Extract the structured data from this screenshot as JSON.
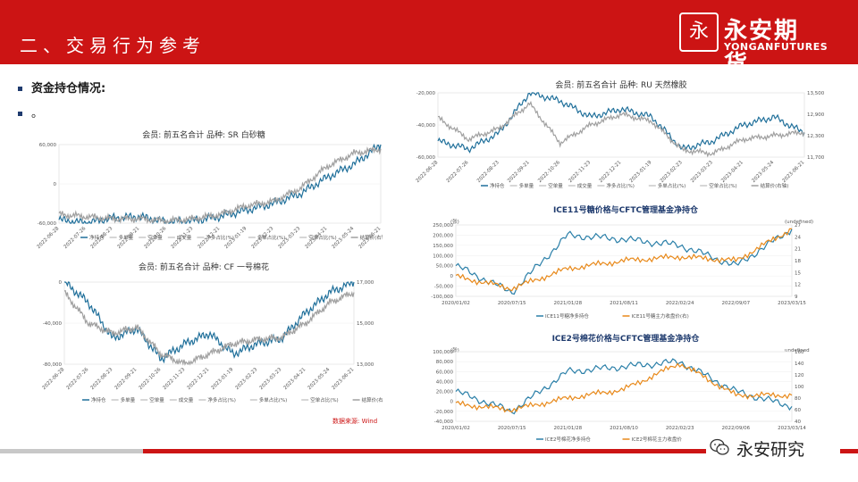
{
  "header": {
    "title": "二、交易行为参考"
  },
  "logo": {
    "mark": "永",
    "cn": "永安期货",
    "en": "YONGANFUTURES"
  },
  "bullets": [
    {
      "text": "资金持仓情况:"
    },
    {
      "text": "。"
    }
  ],
  "source_note": "数据来源: Wind",
  "watermark": {
    "text": "永安研究"
  },
  "colors": {
    "brand_red": "#cc1414",
    "net_position": "#1f6f9a",
    "price_grey": "#a0a0a0",
    "ice_teal": "#2a7fa8",
    "ice_orange": "#e8891a"
  },
  "chart_data": [
    {
      "type": "line",
      "title": "会员: 前五名合计 品种: SR 白砂糖",
      "x": [
        "2022-06-28",
        "2022-07-26",
        "2022-08-23",
        "2022-09-21",
        "2022-10-26",
        "2022-11-23",
        "2022-12-21",
        "2023-01-19",
        "2023-02-23",
        "2023-03-23",
        "2023-04-21",
        "2023-05-24",
        "2023-06-21"
      ],
      "y_left_ticks": [
        "60,000",
        "0",
        "-60,000"
      ],
      "y_right_ticks": [
        "7,200",
        "6,800",
        "6,400",
        "6,000",
        "5,600",
        "5,400"
      ],
      "legend": [
        "净持仓",
        "多单量",
        "空单量",
        "成交量",
        "净多占比(%)",
        "多单占比(%)",
        "空单占比(%)",
        "结算价(右轴)"
      ],
      "series": [
        {
          "name": "净持仓",
          "values": [
            -55000,
            -60000,
            -52000,
            -50000,
            -58000,
            -56000,
            -50000,
            -40000,
            -30000,
            -15000,
            10000,
            30000,
            60000
          ]
        },
        {
          "name": "结算价(右轴)",
          "values": [
            5600,
            5550,
            5500,
            5500,
            5450,
            5500,
            5600,
            5800,
            5900,
            6200,
            6700,
            7000,
            7100
          ]
        }
      ]
    },
    {
      "type": "line",
      "title": "会员: 前五名合计 品种: CF 一号棉花",
      "x": [
        "2022-06-28",
        "2022-07-26",
        "2022-08-23",
        "2022-09-21",
        "2022-10-26",
        "2022-11-23",
        "2022-12-21",
        "2023-01-19",
        "2023-02-23",
        "2023-03-23",
        "2023-04-21",
        "2023-05-24",
        "2023-06-21"
      ],
      "y_left_ticks": [
        "0",
        "-40,000",
        "-80,000"
      ],
      "y_right_ticks": [
        "17,000",
        "15,000",
        "13,000"
      ],
      "legend": [
        "净持仓",
        "多单量",
        "空单量",
        "成交量",
        "净多占比(%)",
        "多单占比(%)",
        "空单占比(%)",
        "结算价(右轴)"
      ],
      "series": [
        {
          "name": "净持仓",
          "values": [
            0,
            -20000,
            -55000,
            -45000,
            -75000,
            -60000,
            -50000,
            -70000,
            -60000,
            -55000,
            -30000,
            -10000,
            0
          ]
        },
        {
          "name": "结算价(右轴)",
          "values": [
            16500,
            15000,
            14500,
            14800,
            13500,
            13000,
            13500,
            14000,
            14200,
            14300,
            15000,
            16000,
            16500
          ]
        }
      ]
    },
    {
      "type": "line",
      "title": "会员: 前五名合计 品种: RU 天然橡胶",
      "x": [
        "2022-06-28",
        "2022-07-26",
        "2022-08-23",
        "2022-09-21",
        "2022-10-26",
        "2022-11-23",
        "2022-12-21",
        "2023-01-19",
        "2023-02-23",
        "2023-03-23",
        "2023-04-21",
        "2023-05-24",
        "2023-06-21"
      ],
      "y_left_ticks": [
        "-20,000",
        "-40,000",
        "-60,000"
      ],
      "y_right_ticks": [
        "13,500",
        "12,900",
        "12,300",
        "11,700"
      ],
      "legend": [
        "净持仓",
        "多单量",
        "空单量",
        "成交量",
        "净多占比(%)",
        "多单占比(%)",
        "空单占比(%)",
        "结算价(右轴)"
      ],
      "series": [
        {
          "name": "净持仓",
          "values": [
            -50000,
            -55000,
            -45000,
            -20000,
            -25000,
            -35000,
            -30000,
            -35000,
            -55000,
            -50000,
            -40000,
            -35000,
            -45000
          ]
        },
        {
          "name": "结算价(右轴)",
          "values": [
            12800,
            12200,
            12500,
            13200,
            12100,
            12600,
            12900,
            12700,
            11900,
            11800,
            12200,
            12300,
            12400
          ]
        }
      ]
    },
    {
      "type": "line",
      "title": "ICE11号糖价格与CFTC管理基金净持仓",
      "left_unit": "(张)",
      "right_unit": "(undefined)",
      "x": [
        "2020/01/02",
        "2020/07/15",
        "2021/01/28",
        "2021/08/11",
        "2022/02/24",
        "2022/09/07",
        "2023/03/15"
      ],
      "y_left_ticks": [
        "250,000",
        "200,000",
        "150,000",
        "100,000",
        "50,000",
        "0",
        "-50,000",
        "-100,000"
      ],
      "y_right_ticks": [
        "27",
        "24",
        "21",
        "18",
        "15",
        "12",
        "9"
      ],
      "legend": [
        "ICE11号糖净多持仓",
        "ICE11号糖主力收盘价(右)"
      ],
      "series": [
        {
          "name": "ICE11号糖净多持仓",
          "values": [
            50000,
            -80000,
            200000,
            180000,
            150000,
            50000,
            230000
          ]
        },
        {
          "name": "ICE11号糖主力收盘价(右)",
          "values": [
            14,
            11,
            16,
            18,
            19,
            18,
            26
          ]
        }
      ]
    },
    {
      "type": "line",
      "title": "ICE2号棉花价格与CFTC管理基金净持仓",
      "left_unit": "(张)",
      "right_unit": "undefined",
      "x": [
        "2020/01/02",
        "2020/07/15",
        "2021/01/28",
        "2021/08/10",
        "2022/02/23",
        "2022/09/06",
        "2023/03/14"
      ],
      "y_left_ticks": [
        "100,000",
        "80,000",
        "60,000",
        "40,000",
        "20,000",
        "0",
        "-20,000",
        "-40,000"
      ],
      "y_right_ticks": [
        "160",
        "140",
        "120",
        "100",
        "80",
        "60",
        "40"
      ],
      "legend": [
        "ICE2号棉花净多持仓",
        "ICE2号棉花主力收盘价"
      ],
      "series": [
        {
          "name": "ICE2号棉花净多持仓",
          "values": [
            20000,
            -20000,
            60000,
            70000,
            80000,
            20000,
            -10000
          ]
        },
        {
          "name": "ICE2号棉花主力收盘价",
          "values": [
            70,
            60,
            80,
            95,
            140,
            85,
            85
          ]
        }
      ]
    }
  ]
}
